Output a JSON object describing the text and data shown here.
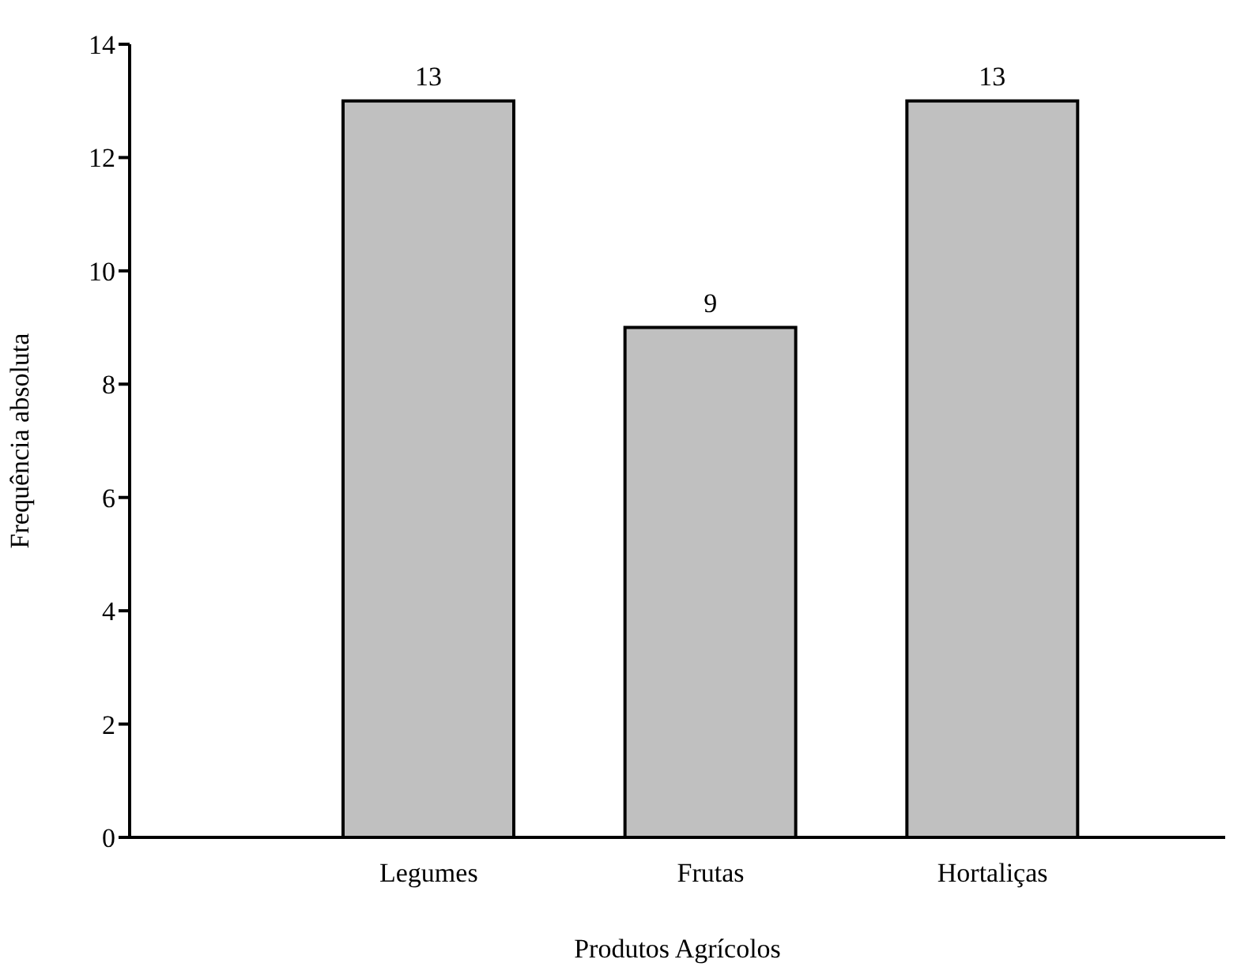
{
  "chart_data": {
    "type": "bar",
    "xlabel": "Produtos Agrícolos",
    "ylabel": "Frequência absoluta",
    "categories": [
      "Legumes",
      "Frutas",
      "Hortaliças"
    ],
    "values": [
      13,
      9,
      13
    ],
    "color": "#c0c0c0",
    "ylim": [
      0,
      14
    ],
    "yticks": [
      0,
      2,
      4,
      6,
      8,
      10,
      12,
      14
    ],
    "data_labels": true
  }
}
